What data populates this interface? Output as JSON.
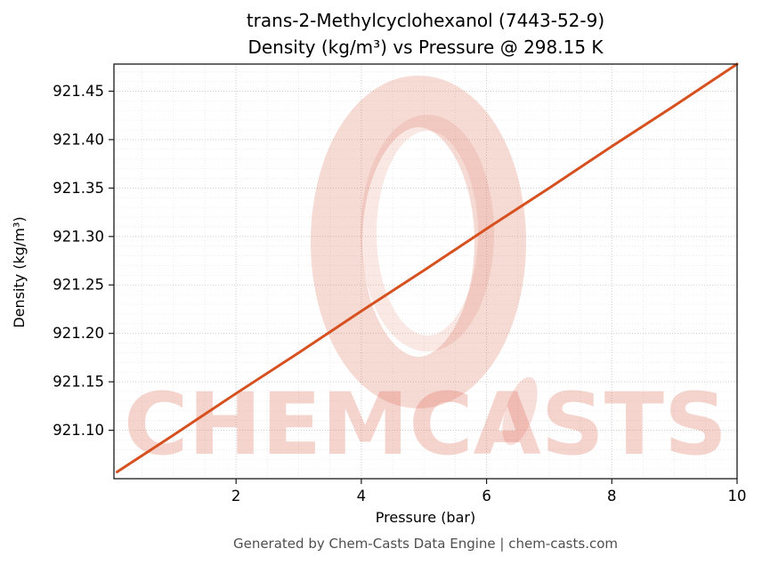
{
  "title": {
    "line1": "trans-2-Methylcyclohexanol (7443-52-9)",
    "line2": "Density (kg/m³) vs Pressure @ 298.15 K"
  },
  "axes": {
    "xlabel": "Pressure (bar)",
    "ylabel": "Density (kg/m³)"
  },
  "footer": {
    "text": "Generated by Chem-Casts Data Engine | chem-casts.com"
  },
  "watermark": {
    "text": "CHEMCASTS",
    "color": "#dd5a41"
  },
  "chart_data": {
    "type": "line",
    "title": "trans-2-Methylcyclohexanol (7443-52-9) — Density (kg/m³) vs Pressure @ 298.15 K",
    "xlabel": "Pressure (bar)",
    "ylabel": "Density (kg/m³)",
    "temperature_K": "298.15",
    "xlim": [
      0.05,
      10
    ],
    "ylim": [
      921.05,
      921.478
    ],
    "grid": true,
    "line_color": "#d6511f",
    "series": [
      {
        "name": "Density vs Pressure @ 298.15 K",
        "x": [
          0.1,
          1,
          2,
          3,
          4,
          5,
          6,
          7,
          8,
          9,
          10
        ],
        "y": [
          921.057,
          921.095,
          921.138,
          921.18,
          921.223,
          921.265,
          921.308,
          921.35,
          921.393,
          921.435,
          921.478
        ]
      }
    ],
    "xticks": [
      {
        "value": 2,
        "label": "2"
      },
      {
        "value": 4,
        "label": "4"
      },
      {
        "value": 6,
        "label": "6"
      },
      {
        "value": 8,
        "label": "8"
      },
      {
        "value": 10,
        "label": "10"
      }
    ],
    "yticks": [
      {
        "value": 921.1,
        "label": "921.10"
      },
      {
        "value": 921.15,
        "label": "921.15"
      },
      {
        "value": 921.2,
        "label": "921.20"
      },
      {
        "value": 921.25,
        "label": "921.25"
      },
      {
        "value": 921.3,
        "label": "921.30"
      },
      {
        "value": 921.35,
        "label": "921.35"
      },
      {
        "value": 921.4,
        "label": "921.40"
      },
      {
        "value": 921.45,
        "label": "921.45"
      }
    ],
    "minor_grid": {
      "x_step": 0.5,
      "y_step": 0.01
    }
  }
}
